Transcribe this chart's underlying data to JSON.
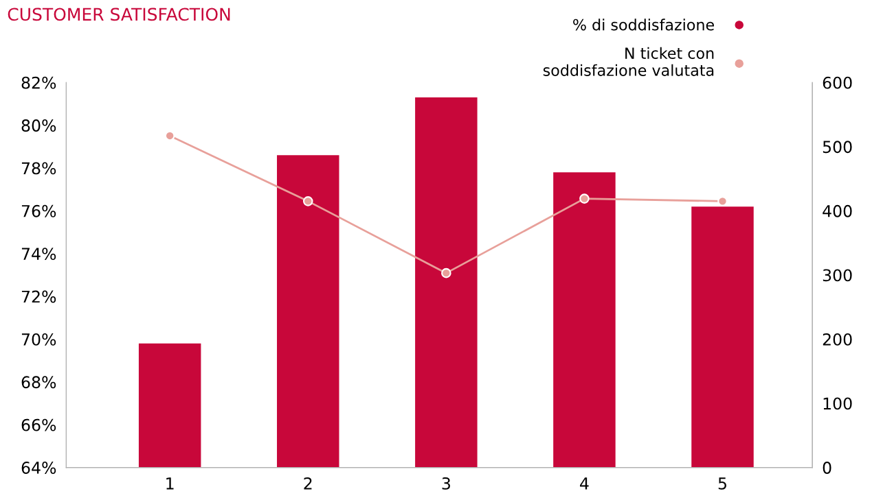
{
  "chart_data": {
    "type": "bar",
    "title": "CUSTOMER SATISFACTION",
    "categories": [
      "1",
      "2",
      "3",
      "4",
      "5"
    ],
    "series": [
      {
        "name": "% di soddisfazione",
        "color": "#c8073a",
        "values": [
          69.8,
          78.6,
          81.3,
          77.8,
          76.2
        ]
      },
      {
        "name": "N ticket con\nsoddisfazione valutata",
        "color": "#e8a09a",
        "type": "line",
        "axis": "y2",
        "marker": "circle",
        "values": [
          517,
          415,
          303,
          419,
          415
        ]
      }
    ],
    "ylim": [
      64,
      82
    ],
    "yticks": [
      {
        "value": 64,
        "label": "64%"
      },
      {
        "value": 66,
        "label": "66%"
      },
      {
        "value": 68,
        "label": "68%"
      },
      {
        "value": 70,
        "label": "70%"
      },
      {
        "value": 72,
        "label": "72%"
      },
      {
        "value": 74,
        "label": "74%"
      },
      {
        "value": 76,
        "label": "76%"
      },
      {
        "value": 78,
        "label": "78%"
      },
      {
        "value": 80,
        "label": "80%"
      },
      {
        "value": 82,
        "label": "82%"
      }
    ],
    "y2lim": [
      0,
      600
    ],
    "y2ticks": [
      0,
      100,
      200,
      300,
      400,
      500,
      600
    ],
    "grid": false,
    "legend": "top right"
  }
}
